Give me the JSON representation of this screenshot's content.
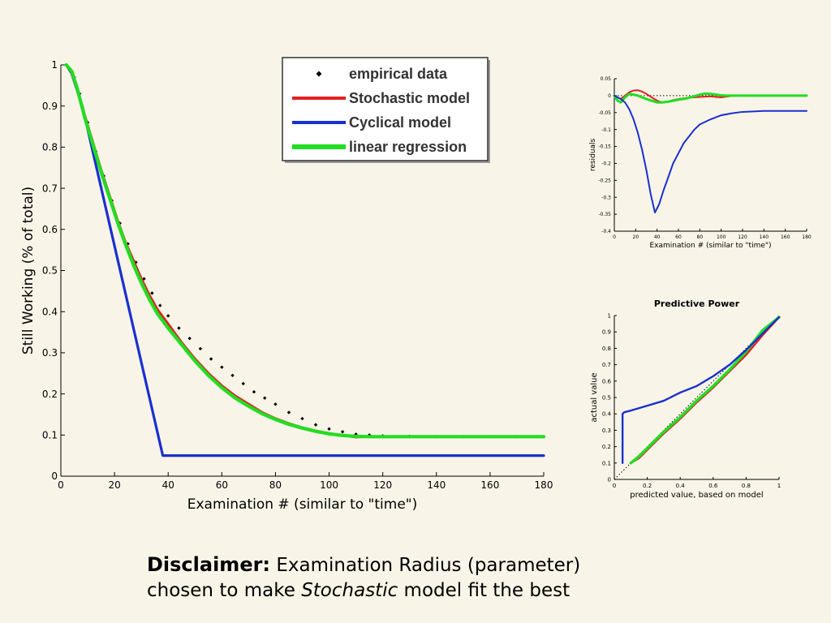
{
  "colors": {
    "background": "#f8f5e8",
    "empirical": "#000000",
    "stochastic": "#e02020",
    "cyclical": "#1a2fd0",
    "linear": "#22dd22"
  },
  "chart_data": [
    {
      "type": "line",
      "xlabel": "Examination #  (similar to \"time\")",
      "ylabel": "Still Working (% of total)",
      "xlim": [
        0,
        180
      ],
      "ylim": [
        0,
        1
      ],
      "xticks": [
        "0",
        "20",
        "40",
        "60",
        "80",
        "100",
        "120",
        "140",
        "160",
        "180"
      ],
      "yticks": [
        "0",
        "0.1",
        "0.2",
        "0.3",
        "0.4",
        "0.5",
        "0.6",
        "0.7",
        "0.8",
        "0.9",
        "1"
      ],
      "grid": false,
      "legend_position": "top-center",
      "legend": [
        "empirical data",
        "Stochastic model",
        "Cyclical model",
        "linear regression"
      ],
      "series": [
        {
          "name": "empirical data",
          "style": "markers",
          "x": [
            2,
            5,
            7,
            10,
            13,
            16,
            19,
            22,
            25,
            28,
            31,
            34,
            37,
            40,
            44,
            48,
            52,
            56,
            60,
            64,
            68,
            72,
            76,
            80,
            85,
            90,
            95,
            100,
            105,
            110,
            115,
            120,
            130,
            140,
            150,
            160,
            170,
            180
          ],
          "y": [
            1.0,
            0.97,
            0.93,
            0.86,
            0.79,
            0.73,
            0.67,
            0.615,
            0.565,
            0.52,
            0.48,
            0.445,
            0.415,
            0.39,
            0.36,
            0.335,
            0.31,
            0.285,
            0.265,
            0.245,
            0.225,
            0.205,
            0.19,
            0.175,
            0.155,
            0.14,
            0.125,
            0.115,
            0.108,
            0.102,
            0.1,
            0.098,
            0.097,
            0.096,
            0.096,
            0.096,
            0.096,
            0.096
          ]
        },
        {
          "name": "Stochastic model",
          "x": [
            2,
            4,
            6,
            9,
            12,
            15,
            18,
            21,
            24,
            27,
            30,
            33,
            36,
            40,
            45,
            50,
            55,
            60,
            65,
            70,
            75,
            80,
            85,
            90,
            95,
            100,
            105,
            110,
            115,
            120,
            140,
            160,
            180
          ],
          "y": [
            1.0,
            0.98,
            0.94,
            0.875,
            0.81,
            0.745,
            0.685,
            0.625,
            0.57,
            0.525,
            0.48,
            0.44,
            0.405,
            0.37,
            0.325,
            0.285,
            0.25,
            0.22,
            0.195,
            0.175,
            0.155,
            0.14,
            0.128,
            0.118,
            0.11,
            0.104,
            0.099,
            0.095,
            0.096,
            0.096,
            0.096,
            0.096,
            0.096
          ]
        },
        {
          "name": "Cyclical model",
          "x": [
            2,
            4,
            8,
            38,
            40,
            60,
            80,
            100,
            120,
            140,
            160,
            180
          ],
          "y": [
            1.0,
            0.98,
            0.9,
            0.05,
            0.05,
            0.05,
            0.05,
            0.05,
            0.05,
            0.05,
            0.05,
            0.05
          ]
        },
        {
          "name": "linear regression",
          "x": [
            2,
            4,
            6,
            9,
            12,
            15,
            18,
            21,
            24,
            27,
            30,
            33,
            36,
            40,
            45,
            50,
            55,
            60,
            65,
            70,
            75,
            80,
            85,
            90,
            95,
            100,
            105,
            110,
            115,
            120,
            140,
            160,
            180
          ],
          "y": [
            1.0,
            0.985,
            0.945,
            0.87,
            0.805,
            0.74,
            0.68,
            0.62,
            0.565,
            0.515,
            0.47,
            0.43,
            0.395,
            0.36,
            0.32,
            0.28,
            0.245,
            0.215,
            0.19,
            0.17,
            0.152,
            0.138,
            0.126,
            0.117,
            0.109,
            0.103,
            0.099,
            0.097,
            0.096,
            0.096,
            0.096,
            0.096,
            0.096
          ]
        }
      ]
    },
    {
      "type": "line",
      "xlabel": "Examination #  (similar to \"time\")",
      "ylabel": "residuals",
      "xlim": [
        0,
        180
      ],
      "ylim": [
        -0.4,
        0.05
      ],
      "xticks": [
        "0",
        "20",
        "40",
        "60",
        "80",
        "100",
        "120",
        "140",
        "160",
        "180"
      ],
      "yticks": [
        "-0.4",
        "-0.35",
        "-0.3",
        "-0.25",
        "-0.2",
        "-0.15",
        "-0.1",
        "-0.05",
        "0",
        "0.05"
      ],
      "grid": false,
      "series": [
        {
          "name": "zero line",
          "style": "dotted",
          "x": [
            0,
            180
          ],
          "y": [
            0,
            0
          ]
        },
        {
          "name": "Stochastic model",
          "x": [
            0,
            3,
            6,
            10,
            14,
            18,
            22,
            26,
            30,
            35,
            40,
            45,
            50,
            55,
            60,
            65,
            70,
            75,
            80,
            85,
            90,
            95,
            100,
            105,
            110,
            120,
            140,
            160,
            180
          ],
          "y": [
            0,
            -0.005,
            -0.01,
            0,
            0.01,
            0.015,
            0.016,
            0.012,
            0.005,
            -0.005,
            -0.015,
            -0.02,
            -0.018,
            -0.013,
            -0.01,
            -0.008,
            -0.006,
            -0.005,
            -0.004,
            -0.003,
            -0.002,
            -0.004,
            -0.005,
            -0.003,
            -0.001,
            0,
            0,
            0,
            0
          ]
        },
        {
          "name": "linear regression",
          "x": [
            0,
            3,
            6,
            10,
            14,
            18,
            22,
            26,
            30,
            35,
            40,
            45,
            50,
            55,
            60,
            65,
            70,
            75,
            80,
            85,
            90,
            95,
            100,
            105,
            110,
            120,
            140,
            160,
            180
          ],
          "y": [
            0,
            -0.015,
            -0.02,
            -0.005,
            0.005,
            0.003,
            0,
            -0.005,
            -0.01,
            -0.015,
            -0.02,
            -0.02,
            -0.018,
            -0.015,
            -0.012,
            -0.01,
            -0.006,
            -0.002,
            0.003,
            0.006,
            0.005,
            0.003,
            0.001,
            0,
            0,
            0,
            0,
            0,
            0
          ]
        },
        {
          "name": "Cyclical model",
          "x": [
            0,
            3,
            6,
            10,
            14,
            18,
            22,
            26,
            30,
            34,
            38,
            42,
            46,
            50,
            55,
            60,
            65,
            70,
            75,
            80,
            90,
            100,
            110,
            120,
            140,
            160,
            180
          ],
          "y": [
            0,
            -0.005,
            -0.01,
            -0.02,
            -0.04,
            -0.07,
            -0.11,
            -0.16,
            -0.22,
            -0.29,
            -0.345,
            -0.32,
            -0.28,
            -0.245,
            -0.2,
            -0.17,
            -0.14,
            -0.12,
            -0.1,
            -0.085,
            -0.07,
            -0.058,
            -0.052,
            -0.048,
            -0.045,
            -0.045,
            -0.045
          ]
        }
      ]
    },
    {
      "type": "line",
      "title": "Predictive Power",
      "xlabel": "predicted value, based on model",
      "ylabel": "actual value",
      "xlim": [
        0,
        1
      ],
      "ylim": [
        0,
        1
      ],
      "xticks": [
        "0",
        "0.2",
        "0.4",
        "0.6",
        "0.8",
        "1"
      ],
      "yticks": [
        "0",
        "0.1",
        "0.2",
        "0.3",
        "0.4",
        "0.5",
        "0.6",
        "0.7",
        "0.8",
        "0.9",
        "1"
      ],
      "grid": false,
      "series": [
        {
          "name": "identity",
          "style": "dotted",
          "x": [
            0,
            1
          ],
          "y": [
            0,
            1
          ]
        },
        {
          "name": "Stochastic model",
          "x": [
            0.1,
            0.15,
            0.2,
            0.3,
            0.4,
            0.5,
            0.6,
            0.7,
            0.8,
            0.9,
            1.0
          ],
          "y": [
            0.1,
            0.13,
            0.18,
            0.28,
            0.37,
            0.47,
            0.56,
            0.66,
            0.76,
            0.88,
            0.99
          ]
        },
        {
          "name": "linear regression",
          "x": [
            0.1,
            0.15,
            0.2,
            0.3,
            0.4,
            0.5,
            0.6,
            0.7,
            0.8,
            0.9,
            1.0
          ],
          "y": [
            0.1,
            0.14,
            0.19,
            0.29,
            0.38,
            0.48,
            0.57,
            0.67,
            0.78,
            0.91,
            0.99
          ]
        },
        {
          "name": "Cyclical model",
          "x": [
            0.05,
            0.05,
            0.06,
            0.1,
            0.2,
            0.3,
            0.4,
            0.5,
            0.6,
            0.7,
            0.8,
            0.9,
            1.0
          ],
          "y": [
            0.1,
            0.4,
            0.41,
            0.42,
            0.45,
            0.48,
            0.53,
            0.57,
            0.63,
            0.7,
            0.79,
            0.89,
            0.99
          ]
        }
      ]
    }
  ],
  "disclaimer": {
    "label": "Disclaimer:",
    "line1_rest": " Examination Radius (parameter)",
    "line2_start": "chosen to make ",
    "line2_italic": "Stochastic",
    "line2_end": " model fit the best"
  }
}
